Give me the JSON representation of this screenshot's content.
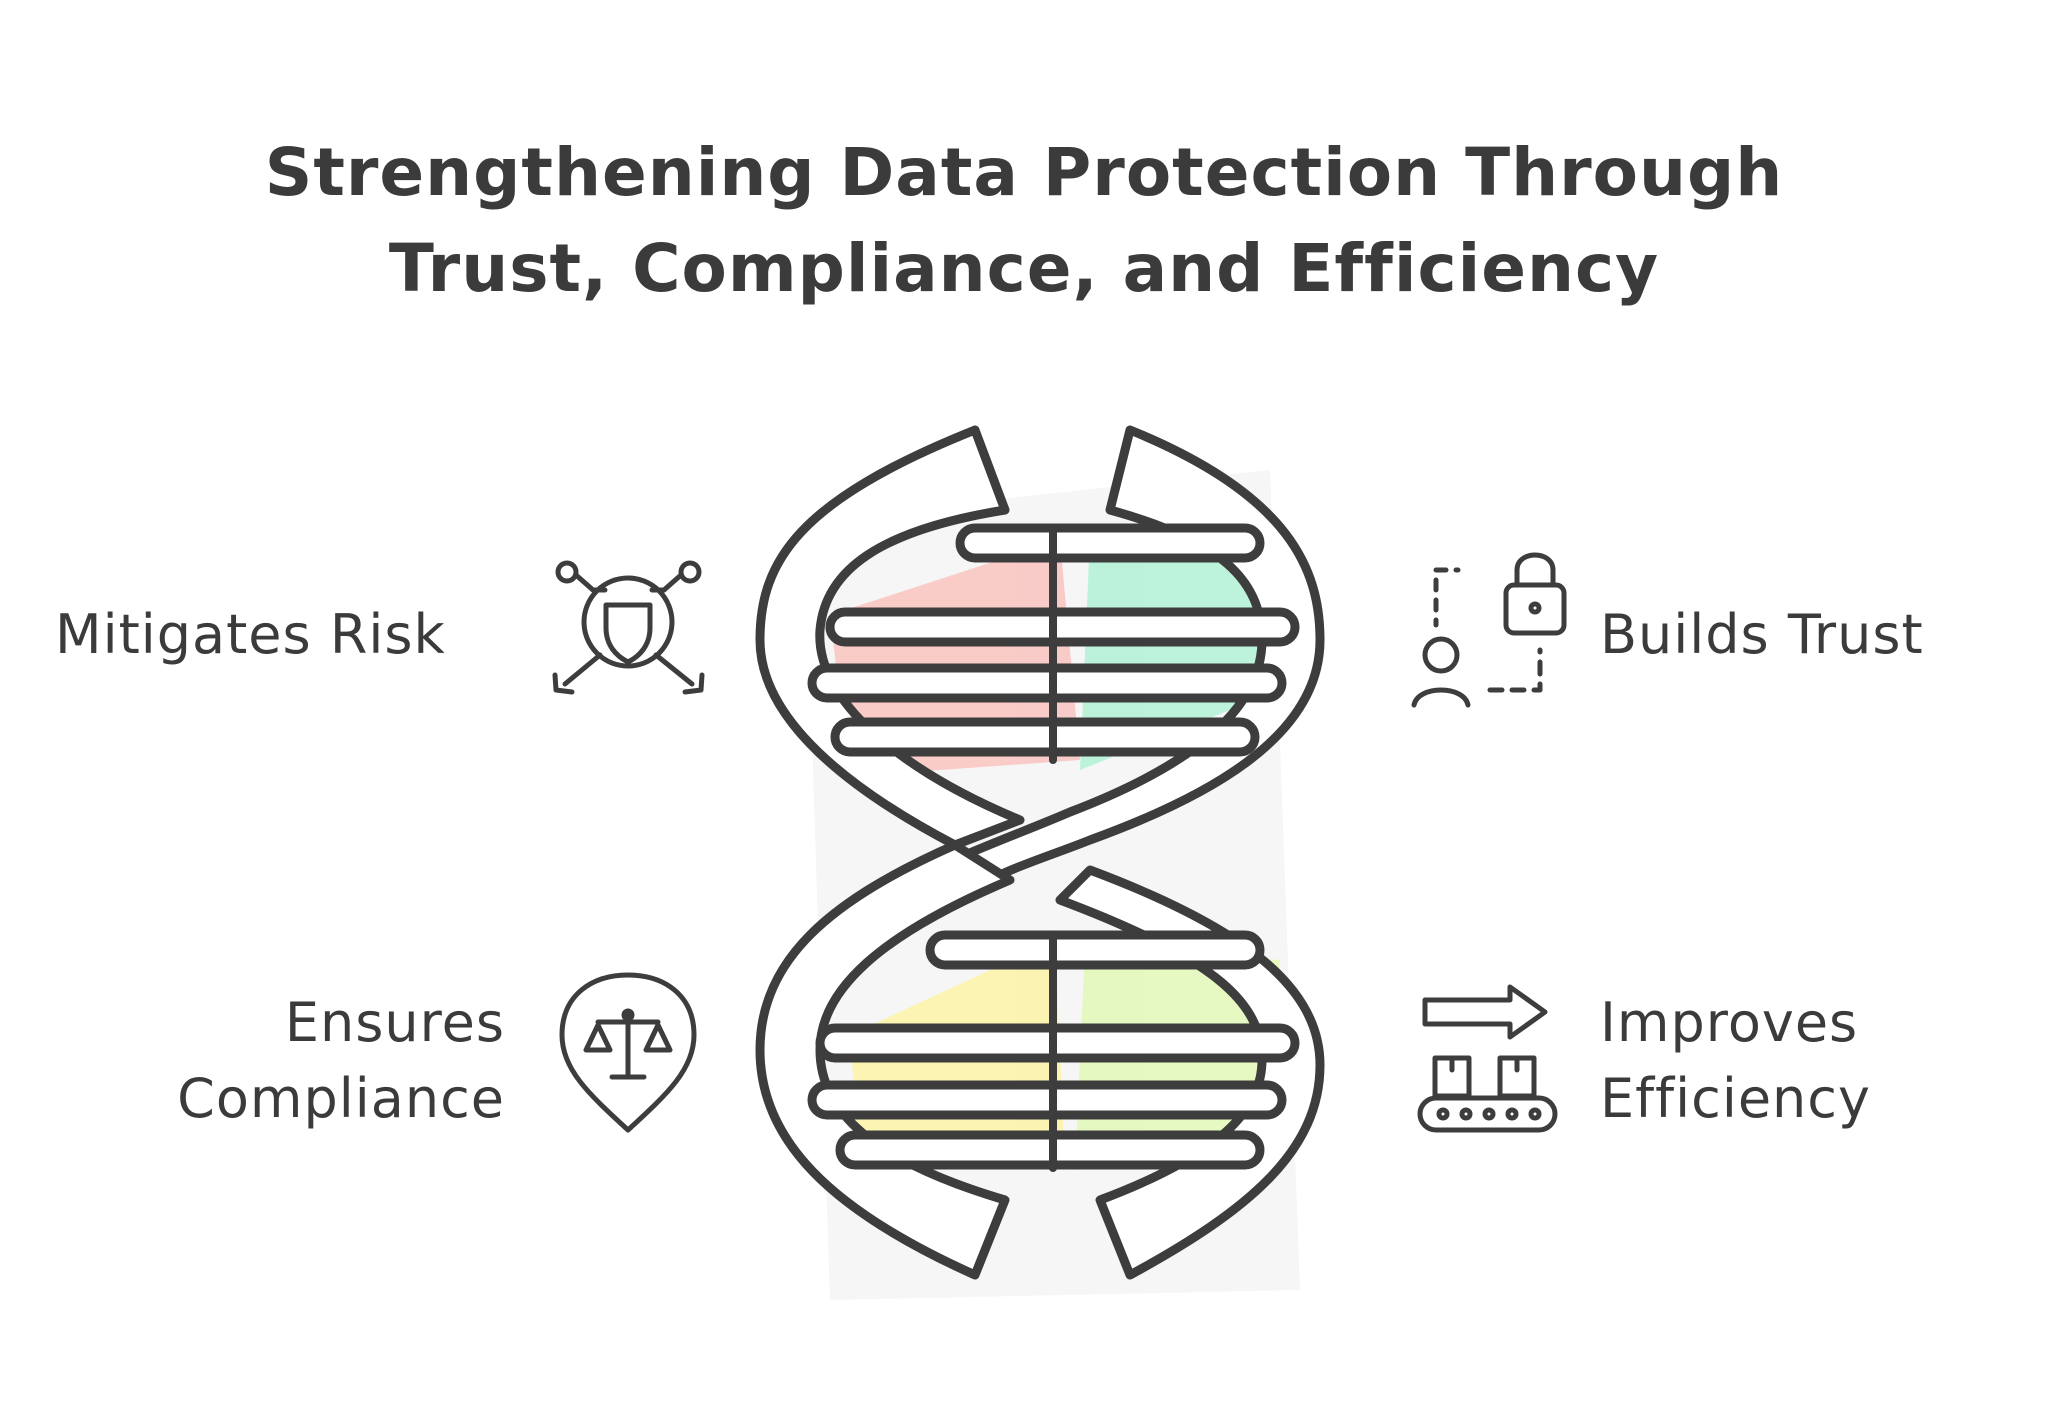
{
  "title": {
    "line1": "Strengthening Data Protection Through",
    "line2": "Trust, Compliance, and Efficiency"
  },
  "items": [
    {
      "id": "risk",
      "line1": "Mitigates Risk",
      "line2": "",
      "icon": "shield-risk-icon",
      "accent": "#f9c4c0"
    },
    {
      "id": "trust",
      "line1": "Builds Trust",
      "line2": "",
      "icon": "user-lock-icon",
      "accent": "#b3f2d6"
    },
    {
      "id": "compliance",
      "line1": "Ensures",
      "line2": "Compliance",
      "icon": "scales-pin-icon",
      "accent": "#fbf3a6"
    },
    {
      "id": "efficiency",
      "line1": "Improves",
      "line2": "Efficiency",
      "icon": "conveyor-arrow-icon",
      "accent": "#e4f9b8"
    }
  ],
  "colors": {
    "stroke": "#3d3d3d",
    "shadow": "#e2e2e2",
    "background": "#ffffff"
  }
}
